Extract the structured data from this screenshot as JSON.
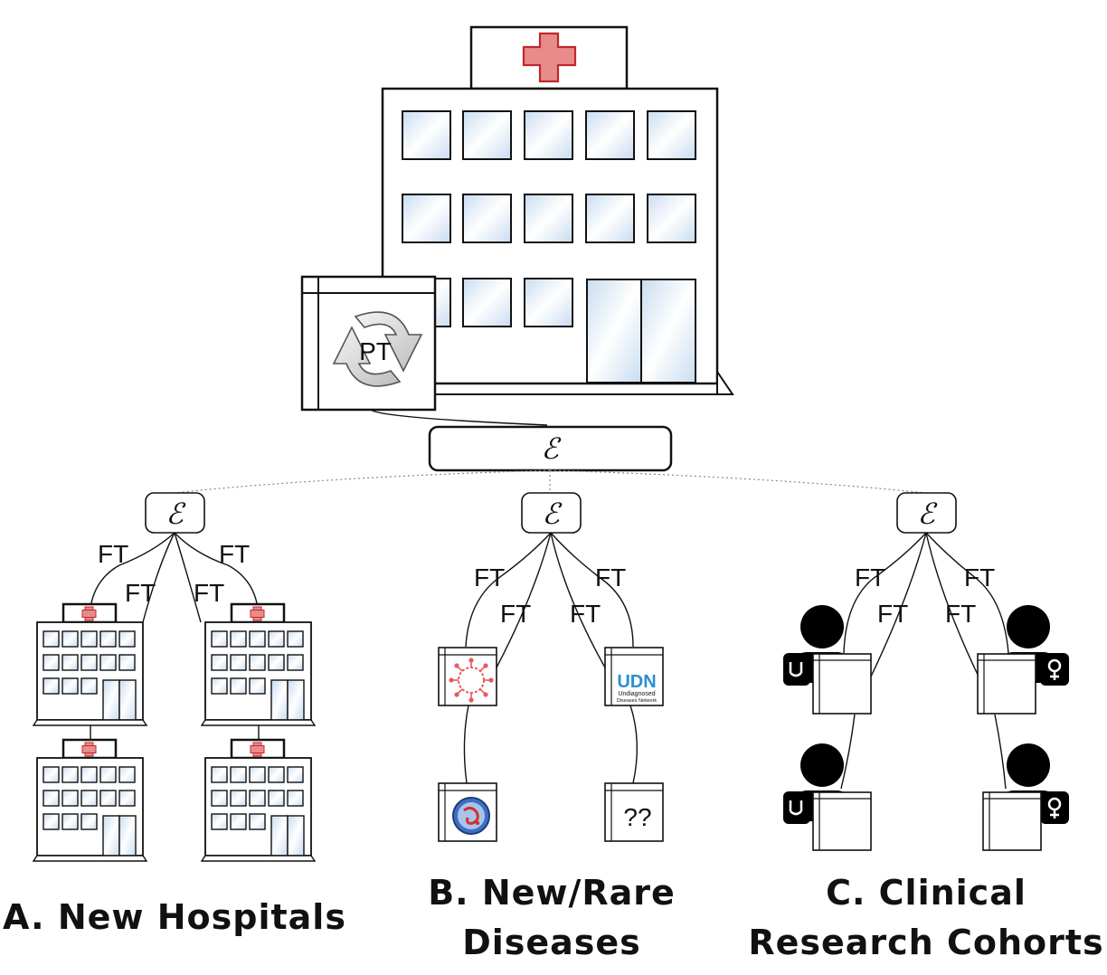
{
  "pretrain": {
    "icon": "refresh-cycle-icon",
    "label": "PT",
    "encoder": "ℰ"
  },
  "finetune_label": "FT",
  "encoders": {
    "symbol": "ℰ"
  },
  "sections": [
    {
      "id": "A",
      "caption_lines": [
        "A. New Hospitals"
      ]
    },
    {
      "id": "B",
      "caption_lines": [
        "B. New/Rare",
        "Diseases"
      ]
    },
    {
      "id": "C",
      "caption_lines": [
        "C. Clinical",
        "Research Cohorts"
      ]
    }
  ],
  "udn_logo": {
    "mark": "UDN",
    "line1": "Undiagnosed",
    "line2": "Diseases Network"
  },
  "unknown_disease": "??",
  "colors": {
    "cross": "#e88b8b",
    "cross_stroke": "#c0282d",
    "window_glass_light": "#ffffff",
    "window_glass_dark": "#c9dcf0",
    "udn_u": "#2b8fd0",
    "udn_d": "#f5a623",
    "udn_n": "#d0312d"
  }
}
